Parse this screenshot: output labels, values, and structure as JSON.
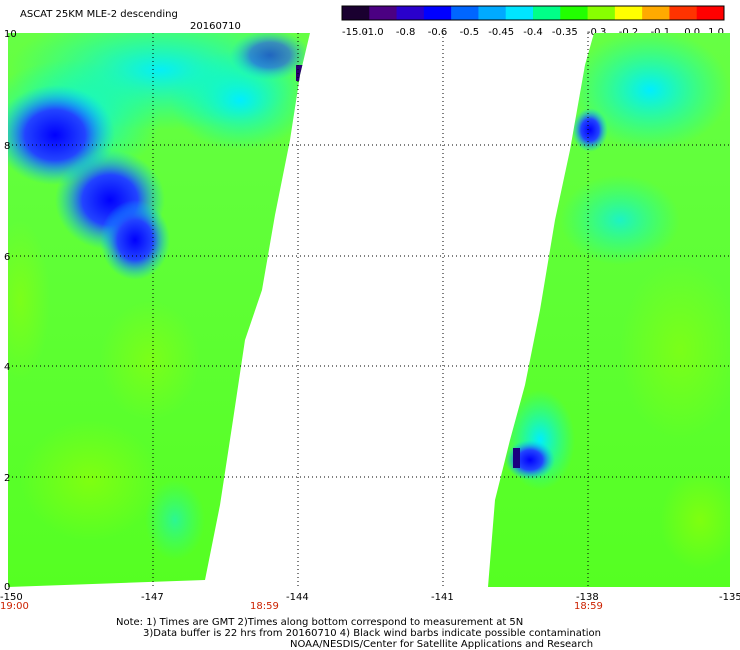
{
  "header": {
    "title": "ASCAT 25KM MLE-2 descending",
    "date": "20160710"
  },
  "colorbar": {
    "labels": [
      "-15.0",
      "-1.0",
      "-0.8",
      "-0.6",
      "-0.5",
      "-0.45",
      "-0.4",
      "-0.35",
      "-0.3",
      "-0.2",
      "-0.1",
      "0.0",
      "1.0"
    ],
    "colors": [
      "#1a0030",
      "#4b0082",
      "#2a00cc",
      "#0000ff",
      "#0066ff",
      "#00aaff",
      "#00e5ff",
      "#00ff88",
      "#22ff00",
      "#88ff00",
      "#ffff00",
      "#ffaa00",
      "#ff3300",
      "#ff0000"
    ]
  },
  "axes": {
    "y_ticks": [
      "0",
      "2",
      "4",
      "6",
      "8",
      "10"
    ],
    "x_ticks": [
      "-150",
      "-147",
      "-144",
      "-141",
      "-138",
      "-135"
    ]
  },
  "times": {
    "left_start": "19:00",
    "left_end": "18:59",
    "right_end": "18:59"
  },
  "notes": {
    "line1": "Note: 1) Times are GMT 2)Times along bottom correspond to measurement at 5N",
    "line2": "3)Data buffer is 22 hrs from 20160710 4) Black wind barbs indicate possible contamination",
    "line3": "NOAA/NESDIS/Center for Satellite Applications and Research"
  }
}
